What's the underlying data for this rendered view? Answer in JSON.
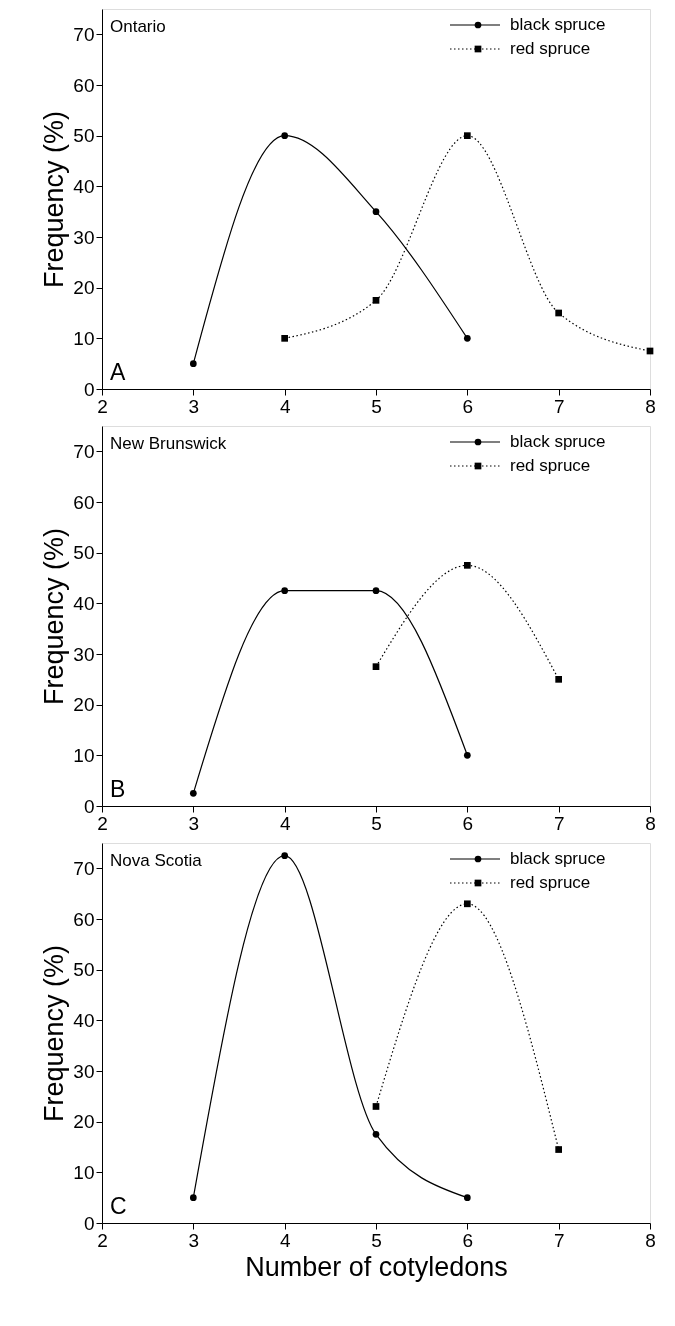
{
  "chart_data": [
    {
      "type": "line",
      "annotations": [
        "Ontario",
        "A"
      ],
      "ylabel": "Frequency (%)",
      "xlim": [
        2,
        8
      ],
      "xticks": [
        2,
        3,
        4,
        5,
        6,
        7,
        8
      ],
      "ylim": [
        0,
        75
      ],
      "yticks": [
        0,
        10,
        20,
        30,
        40,
        50,
        60,
        70
      ],
      "legend": "top right",
      "grid": false,
      "series": [
        {
          "name": "black spruce",
          "color": "#000000",
          "x": [
            3,
            4,
            5,
            6
          ],
          "values": [
            5,
            50,
            35,
            10
          ],
          "marker": "circle",
          "line_style": "solid"
        },
        {
          "name": "red spruce",
          "color": "#000000",
          "x": [
            4,
            5,
            6,
            7,
            8
          ],
          "values": [
            10,
            17.5,
            50,
            15,
            7.5
          ],
          "marker": "square",
          "line_style": "dotted"
        }
      ]
    },
    {
      "type": "line",
      "annotations": [
        "New Brunswick",
        "B"
      ],
      "ylabel": "Frequency (%)",
      "xlim": [
        2,
        8
      ],
      "xticks": [
        2,
        3,
        4,
        5,
        6,
        7,
        8
      ],
      "ylim": [
        0,
        75
      ],
      "yticks": [
        0,
        10,
        20,
        30,
        40,
        50,
        60,
        70
      ],
      "legend": "top right",
      "grid": false,
      "series": [
        {
          "name": "black spruce",
          "color": "#000000",
          "x": [
            3,
            4,
            5,
            6
          ],
          "values": [
            2.5,
            42.5,
            42.5,
            10
          ],
          "marker": "circle",
          "line_style": "solid"
        },
        {
          "name": "red spruce",
          "color": "#000000",
          "x": [
            5,
            6,
            7
          ],
          "values": [
            27.5,
            47.5,
            25
          ],
          "marker": "square",
          "line_style": "dotted"
        }
      ]
    },
    {
      "type": "line",
      "annotations": [
        "Nova Scotia",
        "C"
      ],
      "xlabel": "Number of cotyledons",
      "ylabel": "Frequency (%)",
      "xlim": [
        2,
        8
      ],
      "xticks": [
        2,
        3,
        4,
        5,
        6,
        7,
        8
      ],
      "ylim": [
        0,
        75
      ],
      "yticks": [
        0,
        10,
        20,
        30,
        40,
        50,
        60,
        70
      ],
      "legend": "top right",
      "grid": false,
      "series": [
        {
          "name": "black spruce",
          "color": "#000000",
          "x": [
            3,
            4,
            5,
            6
          ],
          "values": [
            5,
            72.5,
            17.5,
            5
          ],
          "marker": "circle",
          "line_style": "solid"
        },
        {
          "name": "red spruce",
          "color": "#000000",
          "x": [
            5,
            6,
            7
          ],
          "values": [
            23,
            63,
            14.5
          ],
          "marker": "square",
          "line_style": "dotted"
        }
      ]
    }
  ]
}
